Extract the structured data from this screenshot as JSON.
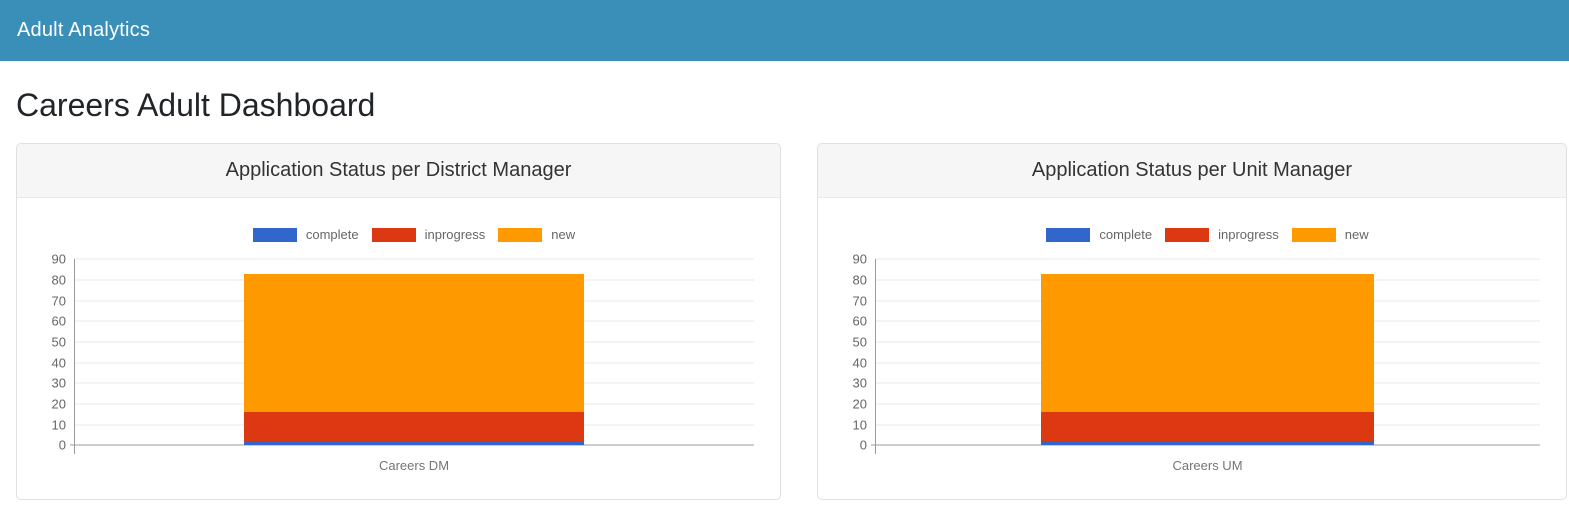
{
  "header": {
    "title": "Adult Analytics",
    "background": "#3a8fb8",
    "text_color": "#ffffff"
  },
  "page": {
    "title": "Careers Adult Dashboard"
  },
  "chart_data": [
    {
      "type": "bar",
      "stacked": true,
      "title": "Application Status per District Manager",
      "categories": [
        "Careers DM"
      ],
      "series": [
        {
          "name": "complete",
          "values": [
            2
          ],
          "color": "#3366cc"
        },
        {
          "name": "inprogress",
          "values": [
            14
          ],
          "color": "#dc3912"
        },
        {
          "name": "new",
          "values": [
            67
          ],
          "color": "#ff9900"
        }
      ],
      "xlabel": "",
      "ylabel": "",
      "ylim": [
        0,
        90
      ],
      "yticks": [
        0,
        10,
        20,
        30,
        40,
        50,
        60,
        70,
        80,
        90
      ],
      "grid": true,
      "legend_position": "top"
    },
    {
      "type": "bar",
      "stacked": true,
      "title": "Application Status per Unit Manager",
      "categories": [
        "Careers UM"
      ],
      "series": [
        {
          "name": "complete",
          "values": [
            2
          ],
          "color": "#3366cc"
        },
        {
          "name": "inprogress",
          "values": [
            14
          ],
          "color": "#dc3912"
        },
        {
          "name": "new",
          "values": [
            67
          ],
          "color": "#ff9900"
        }
      ],
      "xlabel": "",
      "ylabel": "",
      "ylim": [
        0,
        90
      ],
      "yticks": [
        0,
        10,
        20,
        30,
        40,
        50,
        60,
        70,
        80,
        90
      ],
      "grid": true,
      "legend_position": "top"
    }
  ]
}
